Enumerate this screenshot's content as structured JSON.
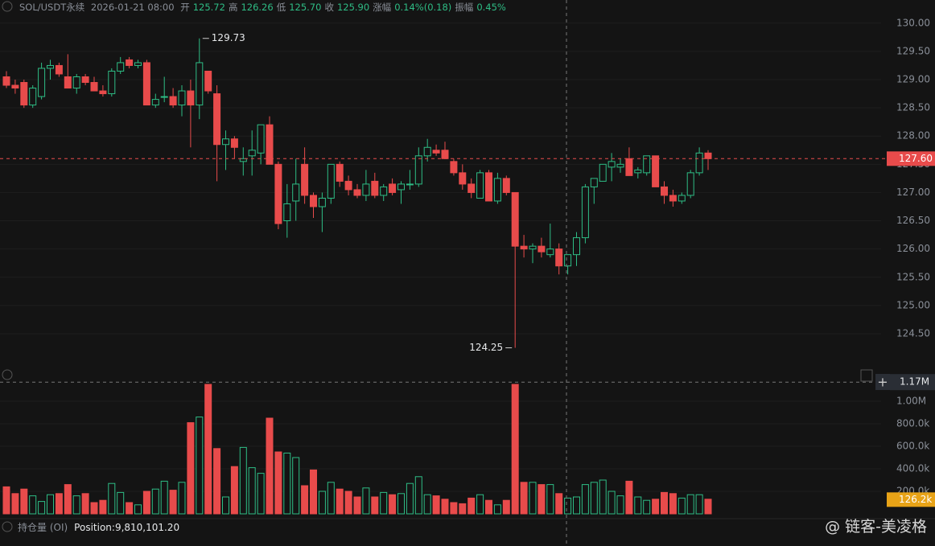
{
  "header": {
    "symbol": "SOL/USDT永续",
    "time": "2026-01-21 08:00",
    "fields": [
      {
        "label": "开",
        "value": "125.72"
      },
      {
        "label": "高",
        "value": "126.26"
      },
      {
        "label": "低",
        "value": "125.70"
      },
      {
        "label": "收",
        "value": "125.90"
      },
      {
        "label": "涨幅",
        "value": "0.14%(0.18)"
      },
      {
        "label": "振幅",
        "value": "0.45%"
      }
    ]
  },
  "chart_data": {
    "type": "candlestick",
    "ylim": [
      123.93,
      130.41
    ],
    "yticks": [
      {
        "value": 124.5,
        "label": "124.50"
      },
      {
        "value": 125,
        "label": "125.00"
      },
      {
        "value": 125.5,
        "label": "125.50"
      },
      {
        "value": 126,
        "label": "126.00"
      },
      {
        "value": 126.5,
        "label": "126.50"
      },
      {
        "value": 127,
        "label": "127.00"
      },
      {
        "value": 127.5,
        "label": "127.50"
      },
      {
        "value": 128,
        "label": "128.00"
      },
      {
        "value": 128.5,
        "label": "128.50"
      },
      {
        "value": 129,
        "label": "129.00"
      },
      {
        "value": 129.5,
        "label": "129.50"
      },
      {
        "value": 130,
        "label": "130.00"
      }
    ],
    "up_color": "#2ebd85",
    "down_color": "#e84b4b",
    "grid": true,
    "open": [
      129.05,
      128.9,
      128.95,
      128.55,
      128.7,
      129.2,
      129.25,
      129.05,
      128.85,
      129.05,
      128.95,
      128.8,
      128.75,
      129.15,
      129.35,
      129.25,
      129.3,
      128.55,
      128.7,
      128.7,
      128.55,
      128.8,
      128.55,
      129.15,
      128.75,
      127.85,
      127.95,
      127.55,
      127.65,
      127.7,
      128.2,
      127.5,
      126.5,
      126.85,
      127.5,
      126.95,
      126.75,
      126.9,
      127.5,
      127.2,
      127.05,
      126.95,
      127.2,
      126.95,
      127.15,
      127.05,
      127.15,
      127.15,
      127.65,
      127.75,
      127.75,
      127.55,
      127.35,
      127.15,
      126.9,
      127.35,
      126.85,
      127.25,
      127.0,
      126.05,
      126.0,
      126.05,
      125.9,
      126.0,
      125.7,
      125.9,
      126.2,
      127.1,
      127.2,
      127.45,
      127.45,
      127.6,
      127.35,
      127.35,
      127.65,
      127.1,
      126.95,
      126.85,
      126.95,
      127.35,
      127.7
    ],
    "high": [
      129.15,
      129.0,
      129.0,
      128.9,
      129.3,
      129.35,
      129.3,
      129.45,
      129.1,
      129.1,
      129.05,
      128.9,
      129.2,
      129.4,
      129.4,
      129.35,
      129.35,
      128.75,
      129.05,
      128.85,
      128.9,
      129.0,
      129.73,
      129.15,
      128.9,
      128.1,
      128.0,
      127.8,
      128.1,
      128.2,
      128.35,
      127.55,
      127.15,
      127.6,
      127.8,
      127.0,
      127.0,
      127.5,
      127.55,
      127.3,
      127.15,
      127.4,
      127.35,
      127.15,
      127.25,
      127.2,
      127.4,
      127.8,
      127.95,
      127.85,
      127.9,
      127.6,
      127.5,
      127.25,
      127.4,
      127.4,
      127.35,
      127.3,
      127.0,
      126.25,
      126.1,
      126.2,
      126.45,
      126.1,
      125.9,
      126.3,
      127.15,
      127.25,
      127.5,
      127.7,
      127.6,
      127.8,
      127.45,
      127.65,
      127.65,
      127.2,
      127.05,
      127.0,
      127.4,
      127.8,
      127.75
    ],
    "low": [
      128.85,
      128.75,
      128.5,
      128.5,
      128.65,
      129.0,
      129.05,
      128.85,
      128.75,
      128.9,
      128.8,
      128.7,
      128.7,
      129.1,
      129.2,
      129.2,
      128.55,
      128.5,
      128.6,
      128.5,
      128.35,
      127.8,
      128.3,
      128.75,
      127.2,
      127.4,
      127.6,
      127.3,
      127.3,
      127.5,
      127.5,
      126.35,
      126.2,
      126.5,
      126.8,
      126.55,
      126.3,
      126.8,
      127.1,
      126.95,
      126.9,
      126.85,
      126.9,
      126.85,
      126.95,
      126.8,
      127.05,
      127.1,
      127.55,
      127.65,
      127.6,
      127.3,
      127.05,
      126.9,
      126.9,
      126.85,
      126.8,
      126.95,
      124.25,
      125.85,
      125.75,
      125.85,
      125.85,
      125.55,
      125.55,
      125.7,
      126.1,
      126.8,
      127.2,
      127.2,
      127.35,
      127.3,
      127.25,
      127.3,
      127.1,
      126.8,
      126.75,
      126.8,
      126.9,
      127.3,
      127.4
    ],
    "close": [
      128.9,
      128.85,
      128.55,
      128.85,
      129.2,
      129.25,
      129.1,
      128.85,
      129.05,
      128.95,
      128.8,
      128.75,
      129.15,
      129.3,
      129.25,
      129.3,
      128.55,
      128.65,
      128.7,
      128.55,
      128.8,
      128.55,
      129.3,
      128.8,
      127.85,
      127.95,
      127.8,
      127.6,
      127.75,
      128.2,
      127.5,
      126.45,
      126.8,
      127.15,
      126.95,
      126.75,
      126.9,
      127.5,
      127.2,
      127.05,
      126.95,
      127.15,
      126.95,
      127.1,
      127.0,
      127.15,
      127.15,
      127.65,
      127.8,
      127.7,
      127.6,
      127.35,
      127.15,
      127.0,
      127.35,
      126.85,
      127.25,
      127.0,
      126.05,
      126.0,
      126.05,
      125.95,
      126.0,
      125.7,
      125.9,
      126.2,
      127.1,
      127.25,
      127.5,
      127.55,
      127.5,
      127.3,
      127.4,
      127.65,
      127.1,
      126.95,
      126.85,
      126.95,
      127.35,
      127.7,
      127.6
    ],
    "max_annotation": 129.73,
    "min_annotation": 124.25,
    "last_price": {
      "value": 127.6,
      "label": "127.60"
    },
    "volume": {
      "values": [
        240000,
        180000,
        220000,
        160000,
        110000,
        170000,
        180000,
        260000,
        160000,
        180000,
        100000,
        120000,
        270000,
        190000,
        100000,
        80000,
        200000,
        220000,
        290000,
        210000,
        280000,
        810000,
        860000,
        1150000,
        580000,
        150000,
        420000,
        590000,
        410000,
        360000,
        850000,
        550000,
        540000,
        500000,
        250000,
        390000,
        200000,
        280000,
        220000,
        200000,
        150000,
        230000,
        150000,
        190000,
        170000,
        180000,
        270000,
        330000,
        170000,
        160000,
        130000,
        100000,
        90000,
        140000,
        170000,
        120000,
        80000,
        120000,
        1150000,
        280000,
        280000,
        260000,
        260000,
        180000,
        140000,
        150000,
        260000,
        280000,
        300000,
        200000,
        160000,
        290000,
        150000,
        120000,
        130000,
        190000,
        180000,
        140000,
        170000,
        170000,
        130000
      ],
      "ylim": [
        0,
        1150000
      ],
      "yticks": [
        {
          "value": 200000,
          "label": "200.0k"
        },
        {
          "value": 400000,
          "label": "400.0k"
        },
        {
          "value": 600000,
          "label": "600.0k"
        },
        {
          "value": 800000,
          "label": "800.0k"
        },
        {
          "value": 1000000,
          "label": "1.00M"
        }
      ],
      "last": {
        "value": 126200,
        "label": "126.2k"
      },
      "crosshair": {
        "value": 1170000,
        "label": "1.17M"
      }
    }
  },
  "oi": {
    "title": "持仓量 (OI)",
    "position": "Position:9,810,101.20"
  },
  "watermark": "@ 链客-美凌格"
}
